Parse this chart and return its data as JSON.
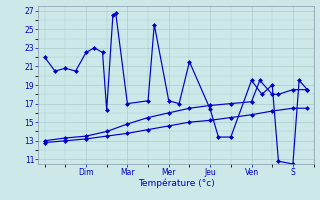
{
  "background_color": "#cce8e8",
  "grid_color": "#aacccc",
  "line_color": "#0000cc",
  "xlabel": "Température (°c)",
  "yticks": [
    11,
    13,
    15,
    17,
    19,
    21,
    23,
    25,
    27
  ],
  "day_labels": [
    "Dim",
    "Mar",
    "Mer",
    "Jeu",
    "Ven",
    "S"
  ],
  "x_top": [
    0,
    0.25,
    0.5,
    0.75,
    1.0,
    1.2,
    1.4,
    1.5,
    1.65,
    1.72,
    2.0,
    2.5,
    2.65,
    3.0,
    3.25,
    3.5,
    4.0,
    4.2,
    4.5,
    5.0,
    5.25,
    5.5,
    5.65,
    6.0,
    6.15,
    6.35
  ],
  "y_top": [
    22,
    20.5,
    20.8,
    20.5,
    22.5,
    23.0,
    22.5,
    16.3,
    26.5,
    26.7,
    17.0,
    17.3,
    25.5,
    17.3,
    17.0,
    21.5,
    16.4,
    13.4,
    13.4,
    19.5,
    18.0,
    19.0,
    10.8,
    10.5,
    19.5,
    18.5
  ],
  "x_mid": [
    0,
    0.5,
    1.0,
    1.5,
    2.0,
    2.5,
    3.0,
    3.5,
    4.0,
    4.5,
    5.0,
    5.2,
    5.5,
    5.65,
    6.0,
    6.35
  ],
  "y_mid": [
    13.0,
    13.3,
    13.5,
    14.0,
    14.8,
    15.5,
    16.0,
    16.5,
    16.8,
    17.0,
    17.2,
    19.5,
    18.0,
    18.0,
    18.5,
    18.5
  ],
  "x_bot": [
    0,
    0.5,
    1.0,
    1.5,
    2.0,
    2.5,
    3.0,
    3.5,
    4.0,
    4.5,
    5.0,
    5.5,
    6.0,
    6.35
  ],
  "y_bot": [
    12.8,
    13.0,
    13.2,
    13.5,
    13.8,
    14.2,
    14.6,
    15.0,
    15.2,
    15.5,
    15.8,
    16.2,
    16.5,
    16.5
  ],
  "xlim": [
    -0.15,
    6.5
  ],
  "ylim": [
    10.5,
    27.5
  ],
  "day_positions": [
    1.0,
    2.0,
    3.0,
    4.0,
    5.0,
    6.0
  ]
}
